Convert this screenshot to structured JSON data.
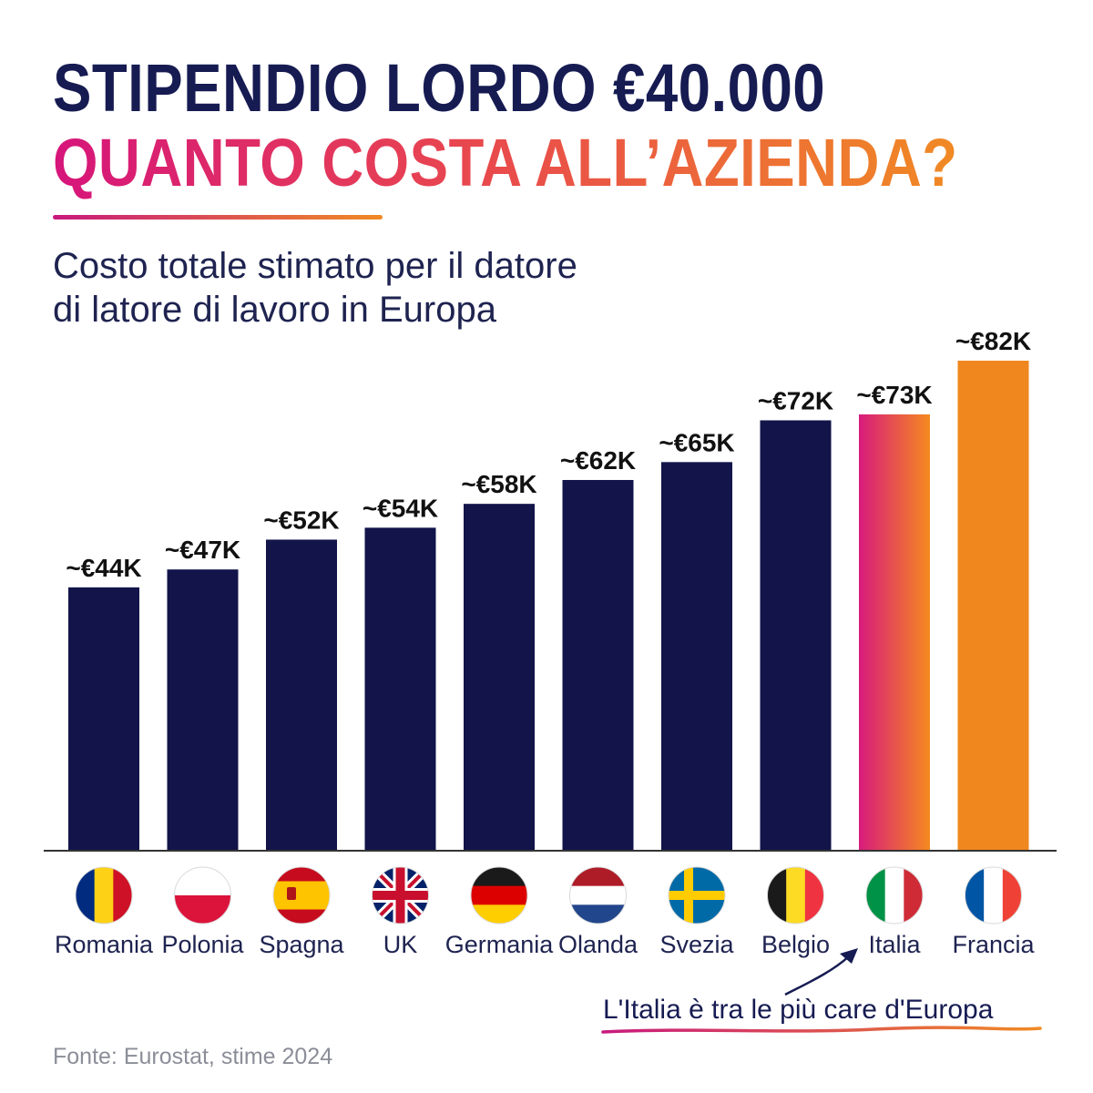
{
  "header": {
    "title_line1": "STIPENDIO LORDO €40.000",
    "title_line2": "QUANTO COSTA ALL’AZIENDA?",
    "subtitle": "Costo totale stimato per il datore\ndi latore di lavoro in Europa"
  },
  "chart_data": {
    "type": "bar",
    "categories": [
      "Romania",
      "Polonia",
      "Spagna",
      "UK",
      "Germania",
      "Olanda",
      "Svezia",
      "Belgio",
      "Italia",
      "Francia"
    ],
    "values": [
      44,
      47,
      52,
      54,
      58,
      62,
      65,
      72,
      73,
      82
    ],
    "value_labels": [
      "~€44K",
      "~€47K",
      "~€52K",
      "~€54K",
      "~€58K",
      "~€62K",
      "~€65K",
      "~€72K",
      "~€73K",
      "~€82K"
    ],
    "flags": [
      "flag-romania-icon",
      "flag-poland-icon",
      "flag-spain-icon",
      "flag-uk-icon",
      "flag-germany-icon",
      "flag-netherlands-icon",
      "flag-sweden-icon",
      "flag-belgium-icon",
      "flag-italy-icon",
      "flag-france-icon"
    ],
    "unit": "K€",
    "ylim": [
      0,
      82
    ],
    "grid": false,
    "colors": {
      "bar_default": "#12144a",
      "bar_highlight_gradient": [
        "#d81b7c",
        "#f58a1f"
      ],
      "bar_last": "#f0871e"
    }
  },
  "annotation": {
    "text": "L'Italia è tra le più care d'Europa",
    "target": "Italia"
  },
  "source": "Fonte: Eurostat, stime 2024"
}
